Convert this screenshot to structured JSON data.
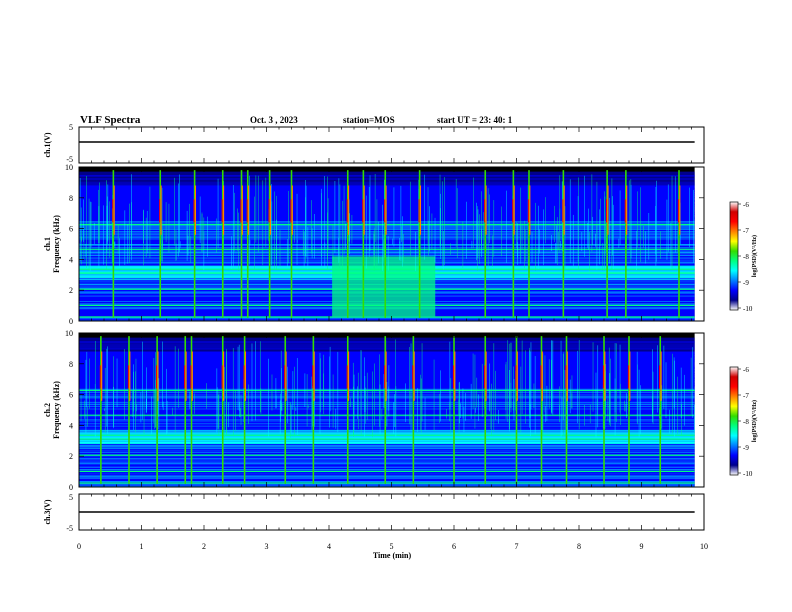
{
  "header": {
    "title": "VLF Spectra",
    "date": "Oct. 3 , 2023",
    "station": "station=MOS",
    "start": "start UT = 23: 40: 1"
  },
  "chart_data": [
    {
      "type": "line",
      "name": "ch1-waveform",
      "ylabel": "ch.1(V)",
      "ylim": [
        -5,
        5
      ],
      "y_ticks": [
        "5",
        "-5"
      ],
      "x": [
        0,
        9.85
      ],
      "values": [
        0,
        0
      ],
      "xlim": [
        0,
        10
      ]
    },
    {
      "type": "heatmap",
      "name": "ch1-spectrogram",
      "ylabel": "ch.1\nFrequency (kHz)",
      "ylim": [
        0,
        10
      ],
      "y_ticks": [
        "0",
        "2",
        "4",
        "6",
        "8",
        "10"
      ],
      "xlim": [
        0,
        10
      ],
      "data_extent_min": 9.85,
      "enhanced_interval_min": [
        4.05,
        5.7
      ],
      "strong_events_min": [
        0.55,
        1.3,
        1.85,
        2.3,
        2.6,
        2.7,
        3.05,
        3.4,
        4.3,
        4.55,
        4.9,
        5.45,
        6.5,
        6.95,
        7.2,
        7.75,
        8.45,
        8.75,
        9.6
      ],
      "event_upper_khz": 9.8,
      "colorbar": {
        "label": "log(PSD)(V²/Hz)",
        "range": [
          -10,
          -6
        ],
        "ticks": [
          "-6",
          "-7",
          "-8",
          "-9",
          "-10"
        ]
      }
    },
    {
      "type": "heatmap",
      "name": "ch2-spectrogram",
      "ylabel": "ch.2\nFrequency (kHz)",
      "ylim": [
        0,
        10
      ],
      "y_ticks": [
        "0",
        "2",
        "4",
        "6",
        "8",
        "10"
      ],
      "xlim": [
        0,
        10
      ],
      "data_extent_min": 9.85,
      "strong_events_min": [
        0.35,
        0.8,
        1.25,
        1.7,
        1.8,
        2.3,
        2.65,
        3.3,
        3.75,
        4.3,
        4.9,
        5.35,
        6.0,
        6.5,
        7.0,
        7.4,
        7.8,
        8.4,
        8.8,
        9.3
      ],
      "event_upper_khz": 9.8,
      "colorbar": {
        "label": "log(PSD)(V²/Hz)",
        "range": [
          -10,
          -6
        ],
        "ticks": [
          "-6",
          "-7",
          "-8",
          "-9",
          "-10"
        ]
      }
    },
    {
      "type": "line",
      "name": "ch3-waveform",
      "ylabel": "ch.3(V)",
      "ylim": [
        -5,
        5
      ],
      "y_ticks": [
        "5",
        "-5"
      ],
      "x": [
        0,
        9.85
      ],
      "values": [
        0,
        0
      ],
      "xlim": [
        0,
        10
      ],
      "xlabel": "Time (min)",
      "x_ticks": [
        "0",
        "1",
        "2",
        "3",
        "4",
        "5",
        "6",
        "7",
        "8",
        "9",
        "10"
      ]
    }
  ],
  "colors": {
    "colormap": [
      "#00008b",
      "#0000ff",
      "#0080ff",
      "#00ffff",
      "#00ff80",
      "#33dd00",
      "#ffff00",
      "#ff8000",
      "#ff0000",
      "#d00000"
    ],
    "background": "#000000",
    "trace": "#000000"
  }
}
